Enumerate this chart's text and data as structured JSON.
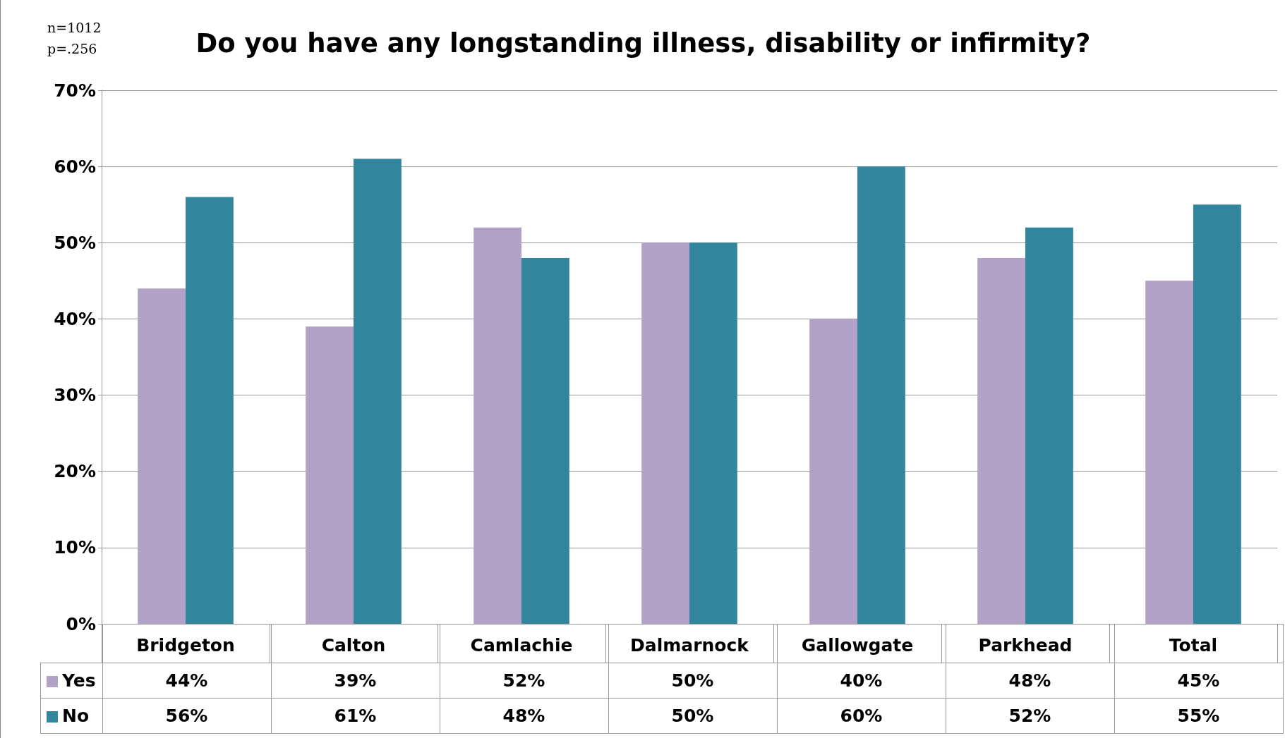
{
  "chart_data": {
    "type": "bar",
    "title": "Do you have any longstanding illness, disability or infirmity?",
    "annotations": [
      "n=1012",
      "p=.256"
    ],
    "categories": [
      "Bridgeton",
      "Calton",
      "Camlachie",
      "Dalmarnock",
      "Gallowgate",
      "Parkhead",
      "Total"
    ],
    "series": [
      {
        "name": "Yes",
        "color": "#b3a2c7",
        "values": [
          44,
          39,
          52,
          50,
          40,
          48,
          45
        ],
        "value_labels": [
          "44%",
          "39%",
          "52%",
          "50%",
          "40%",
          "48%",
          "45%"
        ]
      },
      {
        "name": "No",
        "color": "#31859c",
        "values": [
          56,
          61,
          48,
          50,
          60,
          52,
          55
        ],
        "value_labels": [
          "56%",
          "61%",
          "48%",
          "50%",
          "60%",
          "52%",
          "55%"
        ]
      }
    ],
    "ylim": [
      0,
      70
    ],
    "yticks": [
      {
        "value": 0,
        "label": "0%"
      },
      {
        "value": 10,
        "label": "10%"
      },
      {
        "value": 20,
        "label": "20%"
      },
      {
        "value": 30,
        "label": "30%"
      },
      {
        "value": 40,
        "label": "40%"
      },
      {
        "value": 50,
        "label": "50%"
      },
      {
        "value": 60,
        "label": "60%"
      },
      {
        "value": 70,
        "label": "70%"
      }
    ],
    "grid": "y",
    "legend": "bottom"
  }
}
